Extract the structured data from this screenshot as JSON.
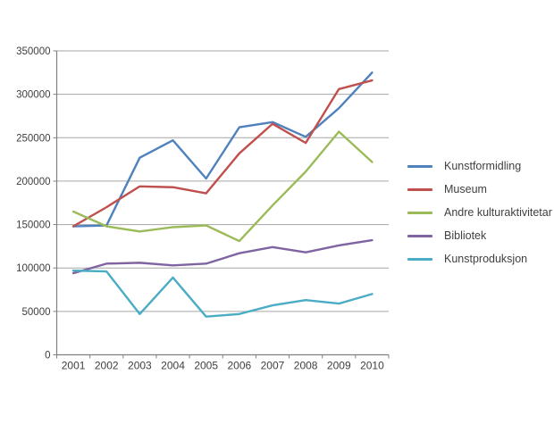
{
  "chart_data": {
    "type": "line",
    "title": "",
    "xlabel": "",
    "ylabel": "",
    "ylim": [
      0,
      350000
    ],
    "ytick_step": 50000,
    "ytick_labels": [
      "0",
      "50000",
      "100000",
      "150000",
      "200000",
      "250000",
      "300000",
      "350000"
    ],
    "categories": [
      "2001",
      "2002",
      "2003",
      "2004",
      "2005",
      "2006",
      "2007",
      "2008",
      "2009",
      "2010"
    ],
    "grid": "horizontal",
    "legend_position": "right",
    "series": [
      {
        "name": "Kunstformidling",
        "color": "#4F81BD",
        "values": [
          148000,
          149000,
          227000,
          247000,
          203000,
          262000,
          268000,
          251000,
          284000,
          325000
        ]
      },
      {
        "name": "Museum",
        "color": "#C0504D",
        "values": [
          148000,
          170000,
          194000,
          193000,
          186000,
          232000,
          266000,
          244000,
          306000,
          316000
        ]
      },
      {
        "name": "Andre kulturaktivitetar",
        "color": "#9BBB59",
        "values": [
          165000,
          148000,
          142000,
          147000,
          149000,
          131000,
          172000,
          211000,
          257000,
          222000
        ]
      },
      {
        "name": "Bibliotek",
        "color": "#8064A2",
        "values": [
          94000,
          105000,
          106000,
          103000,
          105000,
          117000,
          124000,
          118000,
          126000,
          132000
        ]
      },
      {
        "name": "Kunstproduksjon",
        "color": "#4BACC6",
        "values": [
          97000,
          96000,
          47000,
          89000,
          44000,
          47000,
          57000,
          63000,
          59000,
          70000
        ]
      }
    ],
    "colors": {
      "background": "#FFFFFF",
      "gridline": "#A6A6A6",
      "axis": "#808080",
      "tick_text": "#3F3F3F"
    }
  }
}
